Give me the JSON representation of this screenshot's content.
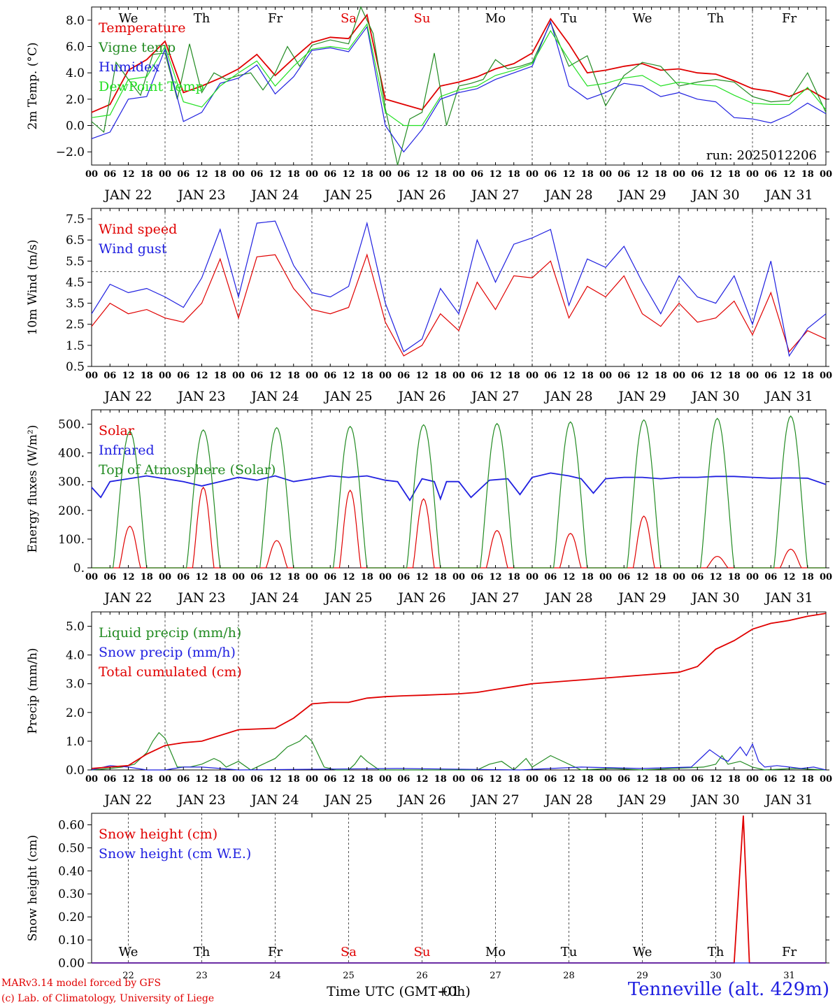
{
  "meteogram": {
    "run_label": "run: 2025012206",
    "day_abbrevs": [
      "We",
      "Th",
      "Fr",
      "Sa",
      "Su",
      "Mo",
      "Tu",
      "We",
      "Th",
      "Fr"
    ],
    "weekend_color": "#e00000",
    "weekday_color": "#000000",
    "hour_ticks": [
      "00",
      "06",
      "12",
      "18"
    ],
    "date_labels": [
      "JAN 22",
      "JAN 23",
      "JAN 24",
      "JAN 25",
      "JAN 26",
      "JAN 27",
      "JAN 28",
      "JAN 29",
      "JAN 30",
      "JAN 31"
    ],
    "day_numbers": [
      "22",
      "23",
      "24",
      "25",
      "26",
      "27",
      "28",
      "29",
      "30",
      "31"
    ],
    "x_axis_label": "Time UTC (GMT+0h)",
    "x_axis_overlay": "-01",
    "footer_line1": "MARv3.14 model forced by GFS",
    "footer_line2": "(c) Lab. of Climatology, University of Liege",
    "station": "Tenneville (alt. 429m)"
  },
  "chart_data": [
    {
      "type": "line",
      "ylabel": "2m Temp. (°C)",
      "ylim": [
        -3.0,
        9.0
      ],
      "yticks": [
        -2.0,
        0.0,
        2.0,
        4.0,
        6.0,
        8.0
      ],
      "ytick_labels": [
        "−2.0",
        "0.0",
        "2.0",
        "4.0",
        "6.0",
        "8.0"
      ],
      "reference_line": 0.0,
      "x_unit": "hours since JAN 22 00 UTC",
      "series": [
        {
          "name": "Temperature",
          "color": "#e00000",
          "x": [
            0,
            6,
            12,
            18,
            24,
            30,
            36,
            42,
            48,
            54,
            60,
            66,
            72,
            78,
            84,
            90,
            96,
            102,
            108,
            114,
            120,
            126,
            132,
            138,
            144,
            150,
            156,
            162,
            168,
            174,
            180,
            186,
            192,
            198,
            204,
            210,
            216,
            222,
            228,
            234,
            240
          ],
          "y": [
            1.0,
            1.6,
            4.2,
            5.0,
            6.4,
            2.5,
            3.0,
            3.6,
            4.3,
            5.4,
            3.8,
            5.1,
            6.3,
            6.7,
            6.6,
            8.4,
            2.0,
            1.6,
            1.2,
            3.0,
            3.3,
            3.7,
            4.3,
            4.7,
            5.5,
            8.1,
            6.2,
            4.0,
            4.2,
            4.5,
            4.7,
            4.2,
            4.3,
            4.0,
            3.9,
            3.4,
            2.8,
            2.6,
            2.2,
            2.8,
            2.0
          ]
        },
        {
          "name": "Vigne temp",
          "color": "#228b22",
          "x": [
            0,
            4,
            8,
            12,
            16,
            20,
            24,
            28,
            32,
            36,
            40,
            44,
            48,
            52,
            56,
            60,
            64,
            68,
            72,
            78,
            84,
            88,
            92,
            96,
            100,
            104,
            108,
            112,
            116,
            120,
            124,
            128,
            132,
            136,
            140,
            144,
            150,
            156,
            162,
            168,
            174,
            180,
            186,
            192,
            198,
            204,
            210,
            216,
            222,
            228,
            234,
            240
          ],
          "y": [
            0.3,
            -0.5,
            4.8,
            3.5,
            2.3,
            5.4,
            5.5,
            2.0,
            6.2,
            2.5,
            4.0,
            3.5,
            3.8,
            4.0,
            2.7,
            4.0,
            6.0,
            4.5,
            6.1,
            6.5,
            6.2,
            9.0,
            7.0,
            1.3,
            -3.0,
            0.5,
            1.0,
            5.5,
            0.0,
            3.0,
            3.2,
            3.5,
            5.0,
            4.3,
            4.5,
            4.8,
            7.8,
            4.5,
            5.3,
            1.5,
            3.8,
            4.8,
            4.5,
            3.0,
            3.3,
            3.5,
            3.3,
            2.2,
            1.8,
            1.9,
            4.0,
            1.0
          ]
        },
        {
          "name": "Humidex",
          "color": "#2020e0",
          "x": [
            0,
            6,
            12,
            18,
            24,
            30,
            36,
            42,
            48,
            54,
            60,
            66,
            72,
            78,
            84,
            90,
            96,
            102,
            108,
            114,
            120,
            126,
            132,
            138,
            144,
            150,
            156,
            162,
            168,
            174,
            180,
            186,
            192,
            198,
            204,
            210,
            216,
            222,
            228,
            234,
            240
          ],
          "y": [
            -1.0,
            -0.5,
            2.0,
            2.2,
            5.8,
            0.3,
            1.0,
            3.2,
            3.6,
            4.6,
            2.4,
            3.7,
            5.7,
            5.9,
            5.6,
            7.5,
            0.0,
            -2.0,
            -0.3,
            2.0,
            2.5,
            2.8,
            3.5,
            4.0,
            4.5,
            7.9,
            3.0,
            2.0,
            2.5,
            3.2,
            3.0,
            2.2,
            2.5,
            2.0,
            1.8,
            0.6,
            0.5,
            0.2,
            0.8,
            1.7,
            0.9
          ]
        },
        {
          "name": "DewPoint Temp",
          "color": "#22e022",
          "x": [
            0,
            6,
            12,
            18,
            24,
            30,
            36,
            42,
            48,
            54,
            60,
            66,
            72,
            78,
            84,
            90,
            96,
            102,
            108,
            114,
            120,
            126,
            132,
            138,
            144,
            150,
            156,
            162,
            168,
            174,
            180,
            186,
            192,
            198,
            204,
            210,
            216,
            222,
            228,
            234,
            240
          ],
          "y": [
            0.6,
            0.8,
            3.5,
            3.7,
            6.0,
            1.8,
            1.4,
            3.0,
            4.0,
            4.9,
            3.0,
            4.5,
            5.8,
            6.0,
            5.8,
            7.7,
            1.0,
            0.0,
            0.0,
            2.2,
            2.7,
            3.0,
            3.8,
            4.2,
            4.7,
            7.2,
            5.0,
            3.0,
            3.2,
            3.6,
            3.8,
            3.0,
            3.3,
            3.1,
            3.0,
            2.3,
            1.7,
            1.6,
            1.6,
            2.9,
            1.2
          ]
        }
      ]
    },
    {
      "type": "line",
      "ylabel": "10m Wind (m/s)",
      "ylim": [
        0.5,
        8.0
      ],
      "yticks": [
        0.5,
        1.5,
        2.5,
        3.5,
        4.5,
        5.5,
        6.5,
        7.5
      ],
      "ytick_labels": [
        "0.5",
        "1.5",
        "2.5",
        "3.5",
        "4.5",
        "5.5",
        "6.5",
        "7.5"
      ],
      "reference_line": 5.0,
      "x_unit": "hours since JAN 22 00 UTC",
      "series": [
        {
          "name": "Wind speed",
          "color": "#e00000",
          "x": [
            0,
            6,
            12,
            18,
            24,
            30,
            36,
            42,
            48,
            54,
            60,
            66,
            72,
            78,
            84,
            90,
            96,
            102,
            108,
            114,
            120,
            126,
            132,
            138,
            144,
            150,
            156,
            162,
            168,
            174,
            180,
            186,
            192,
            198,
            204,
            210,
            216,
            222,
            228,
            234,
            240
          ],
          "y": [
            2.4,
            3.5,
            3.0,
            3.2,
            2.8,
            2.6,
            3.5,
            5.6,
            2.8,
            5.7,
            5.8,
            4.2,
            3.2,
            3.0,
            3.3,
            5.8,
            2.6,
            1.0,
            1.5,
            3.0,
            2.2,
            4.5,
            3.2,
            4.8,
            4.7,
            5.5,
            2.8,
            4.3,
            3.8,
            4.8,
            3.0,
            2.4,
            3.5,
            2.6,
            2.8,
            3.6,
            2.0,
            4.0,
            1.2,
            2.2,
            1.8
          ]
        },
        {
          "name": "Wind gust",
          "color": "#2020e0",
          "x": [
            0,
            6,
            12,
            18,
            24,
            30,
            36,
            42,
            48,
            54,
            60,
            66,
            72,
            78,
            84,
            90,
            96,
            102,
            108,
            114,
            120,
            126,
            132,
            138,
            144,
            150,
            156,
            162,
            168,
            174,
            180,
            186,
            192,
            198,
            204,
            210,
            216,
            222,
            228,
            234,
            240
          ],
          "y": [
            3.0,
            4.4,
            4.0,
            4.2,
            3.8,
            3.3,
            4.7,
            7.0,
            3.8,
            7.3,
            7.4,
            5.3,
            4.0,
            3.8,
            4.3,
            7.3,
            3.5,
            1.2,
            1.8,
            4.2,
            3.0,
            6.5,
            4.5,
            6.3,
            6.6,
            7.0,
            3.4,
            5.6,
            5.2,
            6.2,
            4.5,
            3.0,
            4.8,
            3.8,
            3.5,
            4.8,
            2.5,
            5.5,
            1.0,
            2.3,
            3.0
          ]
        }
      ]
    },
    {
      "type": "line",
      "ylabel": "Energy fluxes (W/m²)",
      "ylim": [
        0,
        550
      ],
      "yticks": [
        0,
        100,
        200,
        300,
        400,
        500
      ],
      "ytick_labels": [
        "0.",
        "100.",
        "200.",
        "300.",
        "400.",
        "500."
      ],
      "x_unit": "hours since JAN 22 00 UTC",
      "series": [
        {
          "name": "Solar",
          "color": "#e00000",
          "day_peaks": [
            145,
            280,
            95,
            270,
            240,
            130,
            120,
            180,
            40,
            65
          ]
        },
        {
          "name": "Infrared",
          "color": "#2020e0",
          "x": [
            0,
            3,
            6,
            12,
            18,
            24,
            30,
            36,
            42,
            48,
            54,
            60,
            66,
            72,
            78,
            84,
            90,
            96,
            100,
            104,
            108,
            112,
            114,
            116,
            120,
            124,
            130,
            136,
            140,
            144,
            150,
            156,
            160,
            164,
            168,
            174,
            180,
            186,
            192,
            198,
            204,
            210,
            216,
            222,
            228,
            234,
            240
          ],
          "y": [
            280,
            245,
            300,
            310,
            320,
            310,
            300,
            285,
            300,
            315,
            305,
            320,
            300,
            310,
            320,
            315,
            320,
            305,
            300,
            235,
            310,
            300,
            240,
            300,
            300,
            245,
            305,
            310,
            255,
            315,
            330,
            320,
            310,
            260,
            310,
            315,
            315,
            310,
            315,
            315,
            318,
            318,
            315,
            312,
            313,
            312,
            290
          ]
        },
        {
          "name": "Top of Atmosphere (Solar)",
          "color": "#228b22",
          "day_peaks": [
            475,
            480,
            488,
            492,
            498,
            502,
            508,
            515,
            520,
            528
          ]
        }
      ]
    },
    {
      "type": "line",
      "ylabel": "Precip (mm/h)",
      "ylim": [
        0,
        5.5
      ],
      "yticks": [
        0,
        1,
        2,
        3,
        4,
        5
      ],
      "ytick_labels": [
        "0.0",
        "1.0",
        "2.0",
        "3.0",
        "4.0",
        "5.0"
      ],
      "x_unit": "hours since JAN 22 00 UTC",
      "series": [
        {
          "name": "Liquid precip (mm/h)",
          "color": "#228b22",
          "x": [
            0,
            6,
            10,
            14,
            18,
            20,
            22,
            24,
            28,
            32,
            36,
            40,
            42,
            44,
            48,
            52,
            56,
            60,
            64,
            68,
            70,
            72,
            76,
            80,
            84,
            86,
            88,
            90,
            94,
            100,
            110,
            126,
            130,
            134,
            138,
            142,
            144,
            150,
            160,
            170,
            180,
            190,
            200,
            204,
            206,
            208,
            212,
            216,
            220,
            230,
            240
          ],
          "y": [
            0,
            0.05,
            0.1,
            0.2,
            0.6,
            1.0,
            1.3,
            1.1,
            0.1,
            0.1,
            0.2,
            0.4,
            0.3,
            0.1,
            0.3,
            0.0,
            0.2,
            0.4,
            0.8,
            1.0,
            1.2,
            1.0,
            0.1,
            0.0,
            0.0,
            0.2,
            0.5,
            0.3,
            0.0,
            0.0,
            0.0,
            0.0,
            0.2,
            0.3,
            0.0,
            0.4,
            0.1,
            0.5,
            0.0,
            0.05,
            0.0,
            0.05,
            0.1,
            0.2,
            0.5,
            0.2,
            0.3,
            0.1,
            0.0,
            0.05,
            0.0
          ]
        },
        {
          "name": "Snow precip (mm/h)",
          "color": "#2020e0",
          "x": [
            0,
            6,
            12,
            18,
            24,
            30,
            36,
            42,
            48,
            100,
            140,
            160,
            180,
            196,
            200,
            202,
            206,
            208,
            212,
            214,
            216,
            218,
            220,
            224,
            228,
            232,
            236,
            240
          ],
          "y": [
            0,
            0.15,
            0.1,
            0.0,
            0.0,
            0.1,
            0.1,
            0.05,
            0.0,
            0.05,
            0.0,
            0.1,
            0.05,
            0.1,
            0.5,
            0.7,
            0.4,
            0.3,
            0.8,
            0.5,
            0.9,
            0.3,
            0.1,
            0.15,
            0.1,
            0.05,
            0.1,
            0.0
          ]
        },
        {
          "name": "Total cumulated (cm)",
          "color": "#e00000",
          "x": [
            0,
            12,
            18,
            24,
            30,
            36,
            48,
            60,
            66,
            72,
            78,
            84,
            90,
            96,
            102,
            108,
            120,
            126,
            132,
            138,
            144,
            156,
            162,
            168,
            180,
            192,
            198,
            204,
            210,
            216,
            222,
            228,
            234,
            240
          ],
          "y": [
            0.05,
            0.15,
            0.55,
            0.85,
            0.95,
            1.0,
            1.4,
            1.45,
            1.8,
            2.3,
            2.35,
            2.35,
            2.5,
            2.55,
            2.58,
            2.6,
            2.65,
            2.7,
            2.8,
            2.9,
            3.0,
            3.1,
            3.15,
            3.2,
            3.3,
            3.4,
            3.6,
            4.2,
            4.5,
            4.9,
            5.1,
            5.2,
            5.35,
            5.45
          ]
        }
      ]
    },
    {
      "type": "line",
      "ylabel": "Snow height (cm)",
      "ylim": [
        0,
        0.65
      ],
      "yticks": [
        0,
        0.1,
        0.2,
        0.3,
        0.4,
        0.5,
        0.6
      ],
      "ytick_labels": [
        "0.00",
        "0.10",
        "0.20",
        "0.30",
        "0.40",
        "0.50",
        "0.60"
      ],
      "x_unit": "hours since JAN 22 00 UTC",
      "series": [
        {
          "name": "Snow height (cm)",
          "color": "#e00000",
          "x": [
            0,
            210,
            213,
            215,
            240
          ],
          "y": [
            0,
            0,
            0.64,
            0,
            0
          ]
        },
        {
          "name": "Snow height (cm W.E.)",
          "color": "#2020e0",
          "x": [
            0,
            240
          ],
          "y": [
            0,
            0
          ]
        }
      ]
    }
  ]
}
